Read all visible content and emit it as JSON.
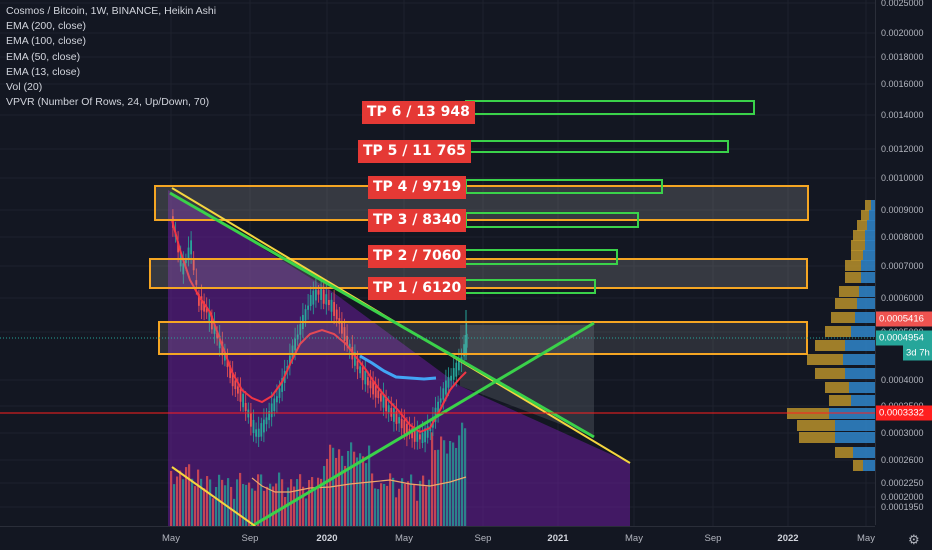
{
  "legend": {
    "title": "Cosmos / Bitcoin, 1W, BINANCE, Heikin Ashi",
    "ema200": "EMA (200, close)",
    "ema100": "EMA (100, close)",
    "ema50": "EMA (50, close)",
    "ema13": "EMA (13, close)",
    "vol": "Vol (20)",
    "vpvr": "VPVR (Number Of Rows, 24, Up/Down, 70)"
  },
  "targets": {
    "tp6": "TP 6 / 13 948",
    "tp5": "TP 5 / 11 765",
    "tp4": "TP 4 / 9719",
    "tp3": "TP 3 / 8340",
    "tp2": "TP 2 / 7060",
    "tp1": "TP 1 / 6120"
  },
  "y_axis": {
    "ticks": [
      "0.0025000",
      "0.0020000",
      "0.0018000",
      "0.0016000",
      "0.0014000",
      "0.0012000",
      "0.0010000",
      "0.0009000",
      "0.0008000",
      "0.0007000",
      "0.0006000",
      "0.0005000",
      "0.0004000",
      "0.0003500",
      "0.0003000",
      "0.0002600",
      "0.0002250",
      "0.0002000",
      "0.0001950"
    ],
    "price_badge": "0.0005416",
    "close_badge": "0.0004954",
    "countdown_badge": "3d 7h",
    "hline_badge": "0.0003332"
  },
  "x_axis": {
    "ticks": [
      "May",
      "Sep",
      "2020",
      "May",
      "Sep",
      "2021",
      "May",
      "Sep",
      "2022",
      "May"
    ]
  },
  "colors": {
    "background": "#131722",
    "up_candle": "#26a69a",
    "down_candle": "#ef5350",
    "ema13": "#f23645",
    "ema50": "#42a5f5",
    "trend_green": "#3ad24a",
    "trend_yellow": "#f5d53f",
    "zone_orange": "#f5a623",
    "tp_red": "#e53935",
    "hline_red": "#ff1f1f",
    "vpvr_blue": "#2f7fc1",
    "vpvr_gold": "#b8902a"
  },
  "chart_data": {
    "type": "candlestick",
    "symbol": "Cosmos / Bitcoin",
    "timeframe": "1W",
    "exchange": "BINANCE",
    "style": "Heikin Ashi",
    "y_scale": "log",
    "ylim": [
      0.00017,
      0.0026
    ],
    "x_range": [
      "2019-04",
      "2022-06"
    ],
    "last_price": 0.0005416,
    "close_price": 0.0004954,
    "horizontal_line": 0.0003332,
    "take_profits": [
      {
        "label": "TP 1",
        "target": 6120
      },
      {
        "label": "TP 2",
        "target": 7060
      },
      {
        "label": "TP 3",
        "target": 8340
      },
      {
        "label": "TP 4",
        "target": 9719
      },
      {
        "label": "TP 5",
        "target": 11765
      },
      {
        "label": "TP 6",
        "target": 13948
      }
    ],
    "resistance_zones": [
      {
        "low": 0.00087,
        "high": 0.00098
      },
      {
        "low": 0.00062,
        "high": 0.00071
      },
      {
        "low": 0.00042,
        "high": 0.00052
      }
    ]
  }
}
